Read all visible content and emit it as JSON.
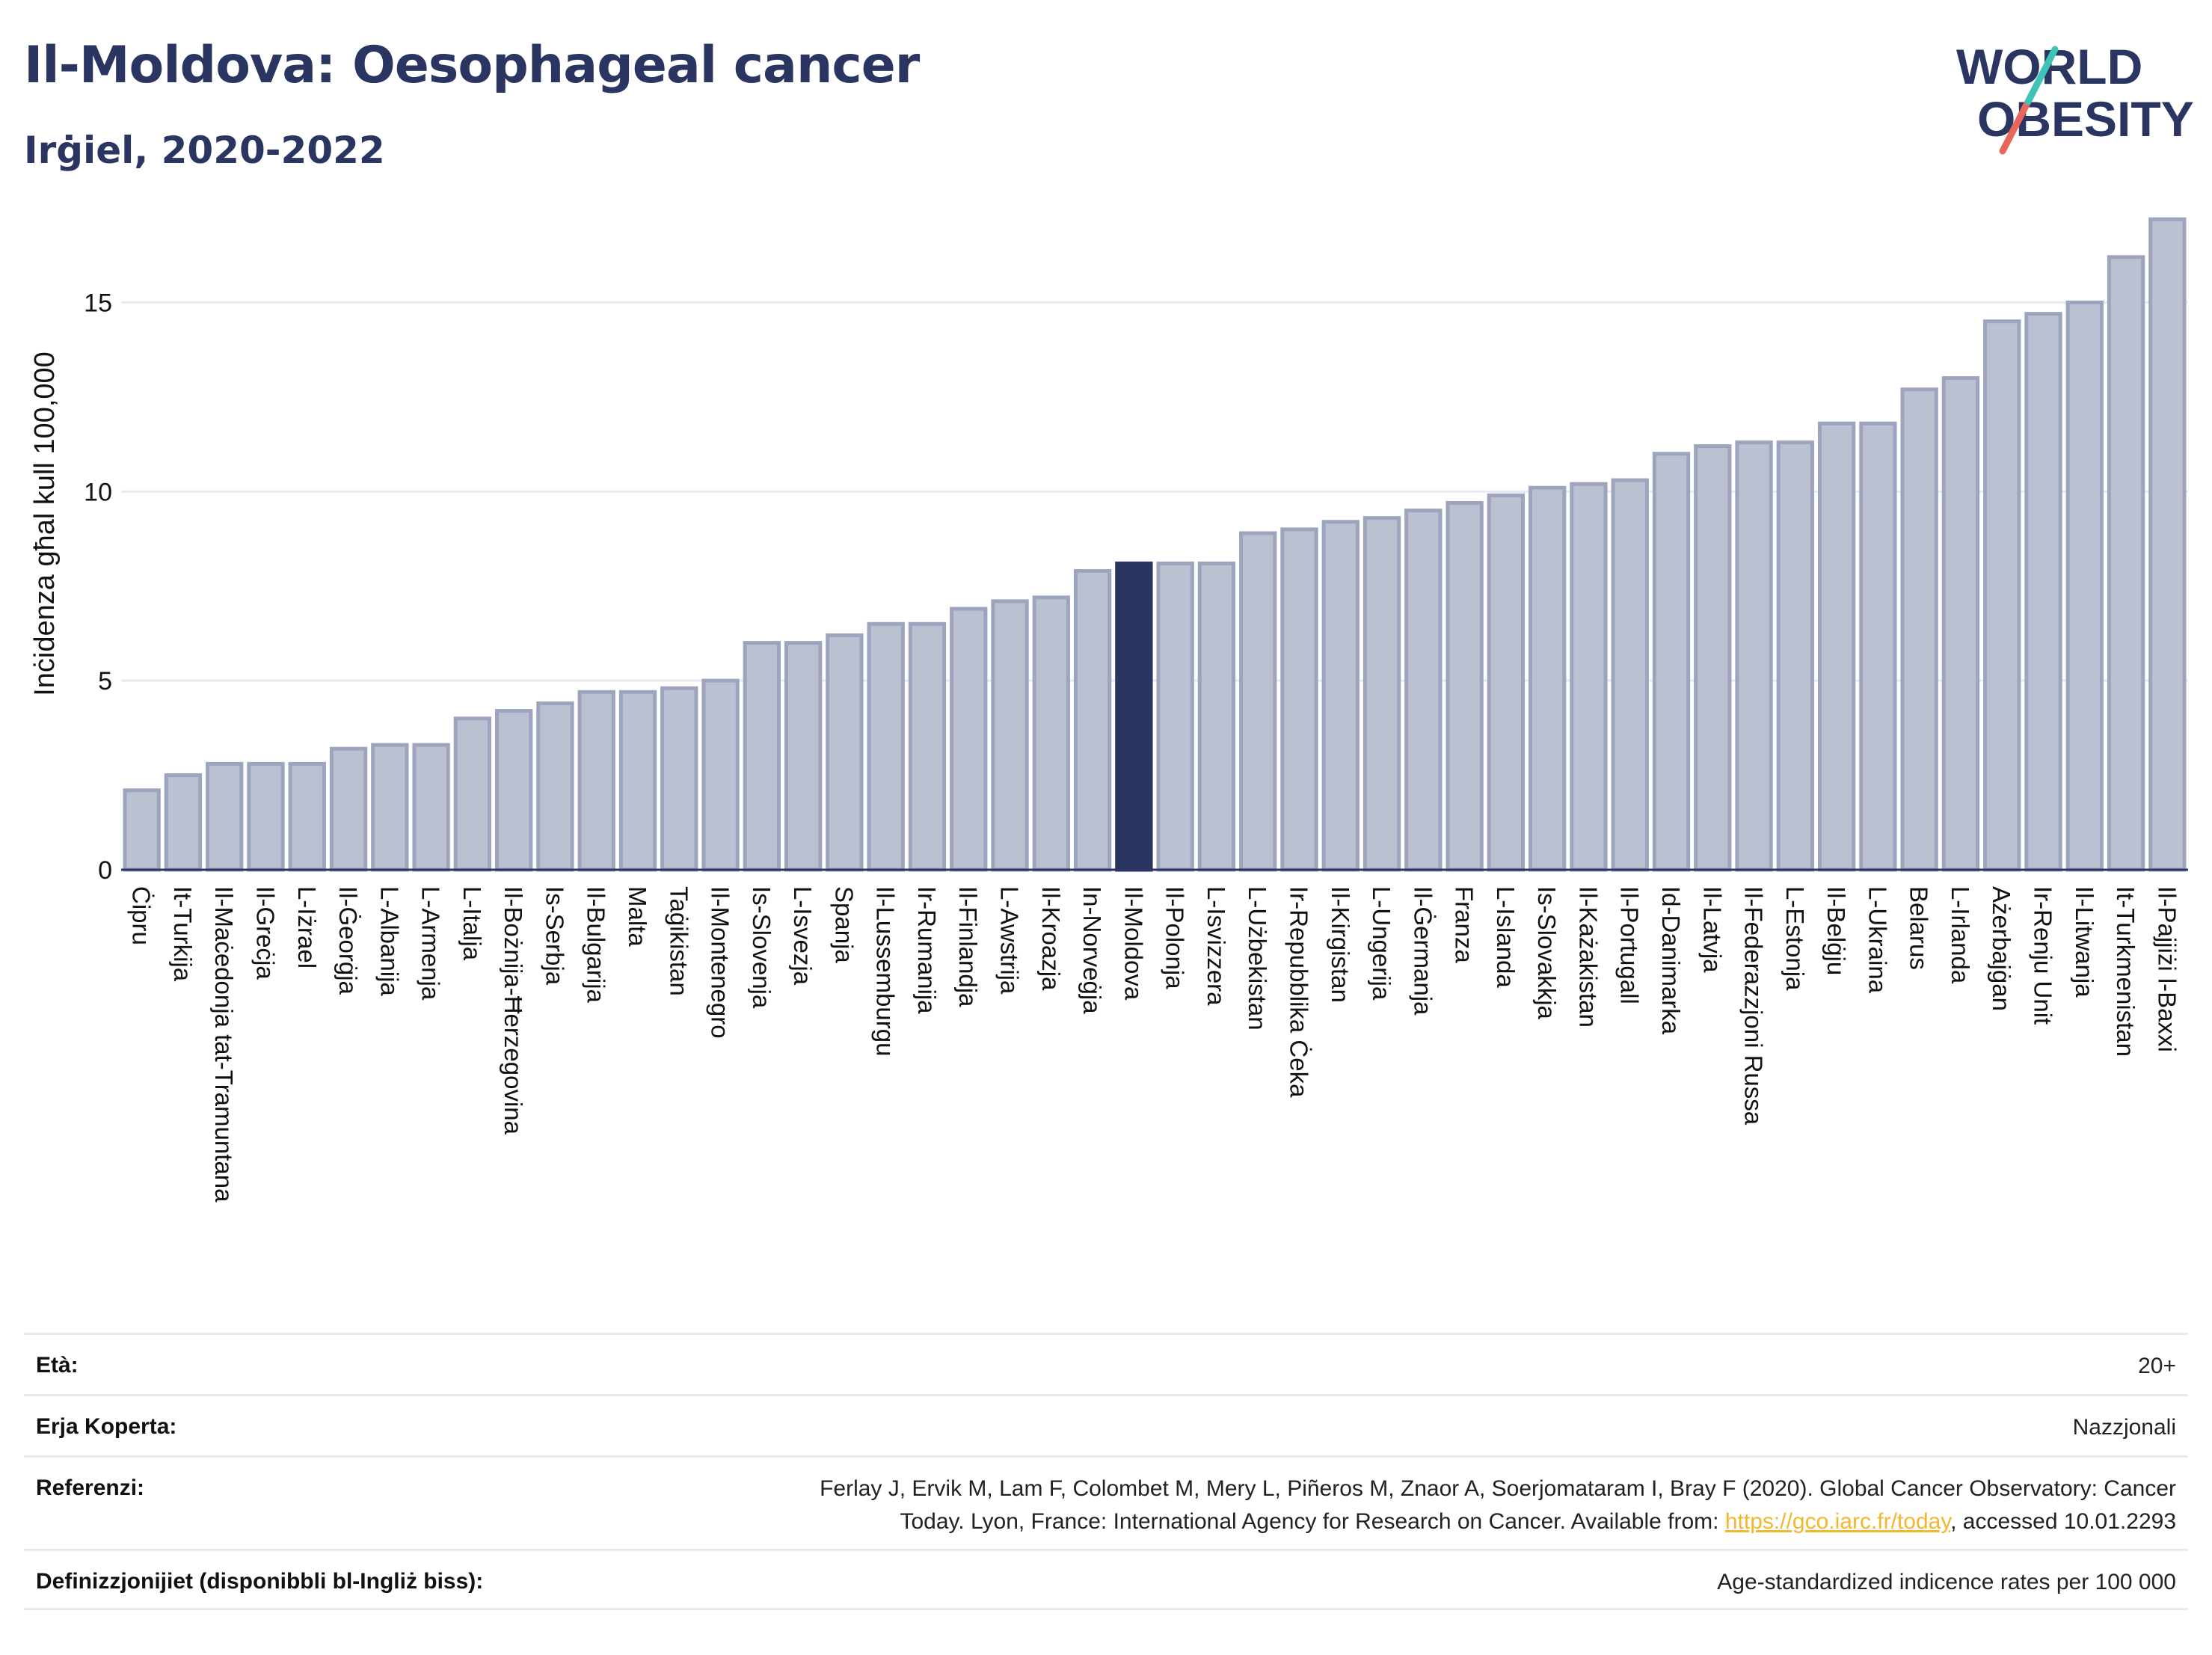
{
  "header": {
    "title": "Il-Moldova: Oesophageal cancer",
    "subtitle": "Irġiel, 2020-2022"
  },
  "logo": {
    "line1": "WORLD",
    "line2": "OBESITY",
    "colors": {
      "text": "#2b3561",
      "slash_teal": "#3fc2b8",
      "slash_red": "#e8675b"
    }
  },
  "chart_data": {
    "type": "bar",
    "ylabel": "Inċidenza għal kull 100,000",
    "ylim": [
      0,
      17.5
    ],
    "yticks": [
      0,
      5,
      10,
      15
    ],
    "grid": true,
    "highlight": "Il-Moldova",
    "colors": {
      "bar": "#bcc1d1",
      "bar_edge": "#9da4bd",
      "highlight": "#2b3561"
    },
    "categories": [
      "Ċipru",
      "It-Turkija",
      "Il-Maċedonja tat-Tramuntana",
      "Il-Greċja",
      "L-Iżrael",
      "Il-Ġeorġja",
      "L-Albanija",
      "L-Armenja",
      "L-Italja",
      "Il-Bożnija-Ħerzegovina",
      "Is-Serbja",
      "Il-Bulgarija",
      "Malta",
      "Taġikistan",
      "Il-Montenegro",
      "Is-Slovenja",
      "L-Isvezja",
      "Spanja",
      "Il-Lussemburgu",
      "Ir-Rumanija",
      "Il-Finlandja",
      "L-Awstrija",
      "Il-Kroazja",
      "In-Norveġja",
      "Il-Moldova",
      "Il-Polonja",
      "L-Isvizzera",
      "L-Użbekistan",
      "Ir-Repubblika Ċeka",
      "Il-Kirgistan",
      "L-Ungerija",
      "Il-Ġermanja",
      "Franza",
      "L-Islanda",
      "Is-Slovakkja",
      "Il-Każakistan",
      "Il-Portugall",
      "Id-Danimarka",
      "Il-Latvja",
      "Il-Federazzjoni Russa",
      "L-Estonja",
      "Il-Belġju",
      "L-Ukraina",
      "Belarus",
      "L-Irlanda",
      "Ażerbajġan",
      "Ir-Renju Unit",
      "Il-Litwanja",
      "It-Turkmenistan",
      "Il-Pajjiżi l-Baxxi"
    ],
    "values": [
      2.1,
      2.5,
      2.8,
      2.8,
      2.8,
      3.2,
      3.3,
      3.3,
      4.0,
      4.2,
      4.4,
      4.7,
      4.7,
      4.8,
      5.0,
      6.0,
      6.0,
      6.2,
      6.5,
      6.5,
      6.9,
      7.1,
      7.2,
      7.9,
      8.1,
      8.1,
      8.1,
      8.9,
      9.0,
      9.2,
      9.3,
      9.5,
      9.7,
      9.9,
      10.1,
      10.2,
      10.3,
      11.0,
      11.2,
      11.3,
      11.3,
      11.8,
      11.8,
      12.7,
      13.0,
      14.5,
      14.7,
      15.0,
      16.2,
      17.2
    ]
  },
  "meta": [
    {
      "label": "Età:",
      "value": "20+"
    },
    {
      "label": "Erja Koperta:",
      "value": "Nazzjonali"
    },
    {
      "label": "Referenzi:",
      "value_line1": "Ferlay J, Ervik M, Lam F, Colombet M, Mery L, Piñeros M, Znaor A, Soerjomataram I, Bray F (2020). Global Cancer Observatory: Cancer",
      "value_line2_pre": "Today. Lyon, France: International Agency for Research on Cancer. Available from: ",
      "link": "https://gco.iarc.fr/today",
      "value_line2_post": ", accessed 10.01.2293"
    },
    {
      "label": "Definizzjonijiet (disponibbli bl-Ingliż biss):",
      "value": "Age-standardized indicence rates per 100 000"
    }
  ]
}
